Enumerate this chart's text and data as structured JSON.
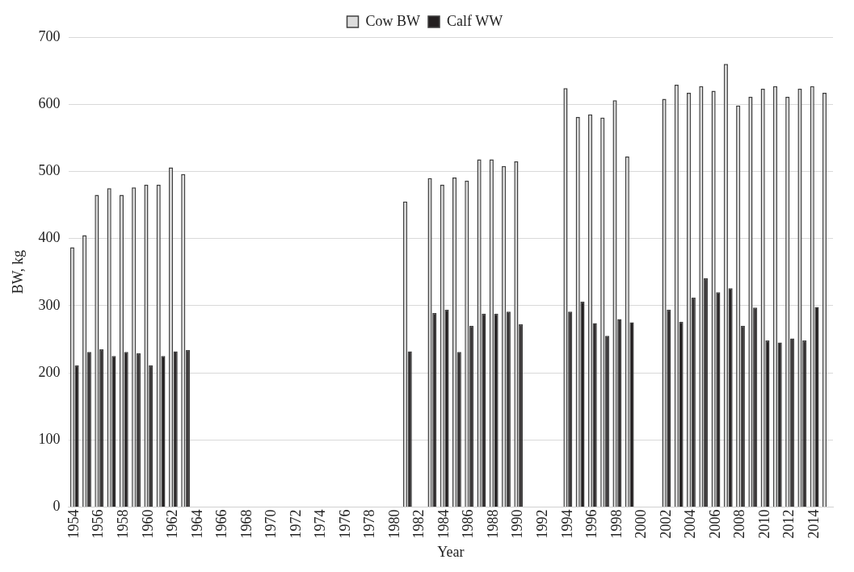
{
  "chart_data": {
    "type": "bar",
    "xlabel": "Year",
    "ylabel": "BW, kg",
    "categories": [
      "1954",
      null,
      "1956",
      null,
      "1958",
      null,
      "1960",
      null,
      "1962",
      null,
      "1964",
      null,
      "1966",
      null,
      "1968",
      null,
      "1970",
      null,
      "1972",
      null,
      "1974",
      null,
      "1976",
      null,
      "1978",
      null,
      "1980",
      null,
      "1982",
      null,
      "1984",
      null,
      "1986",
      null,
      "1988",
      null,
      "1990",
      null,
      "1992",
      null,
      "1994",
      null,
      "1996",
      null,
      "1998",
      null,
      "2000",
      null,
      "2002",
      null,
      "2004",
      null,
      "2006",
      null,
      "2008",
      null,
      "2010",
      null,
      "2012",
      null,
      "2014",
      null
    ],
    "series": [
      {
        "name": "Cow BW",
        "color": "#dcdcdc",
        "values": [
          387,
          405,
          465,
          475,
          465,
          476,
          480,
          480,
          506,
          496,
          null,
          null,
          null,
          null,
          null,
          null,
          null,
          null,
          null,
          null,
          null,
          null,
          null,
          null,
          null,
          null,
          null,
          455,
          null,
          490,
          480,
          491,
          486,
          518,
          518,
          508,
          515,
          null,
          null,
          null,
          624,
          581,
          585,
          580,
          606,
          522,
          null,
          null,
          608,
          629,
          617,
          627,
          620,
          660,
          598,
          611,
          623,
          627,
          611,
          623,
          627,
          617
        ]
      },
      {
        "name": "Calf WW",
        "color": "#231f20",
        "values": [
          211,
          231,
          235,
          225,
          231,
          229,
          211,
          225,
          232,
          234,
          null,
          null,
          null,
          null,
          null,
          null,
          null,
          null,
          null,
          null,
          null,
          null,
          null,
          null,
          null,
          null,
          null,
          232,
          null,
          289,
          294,
          231,
          270,
          288,
          288,
          291,
          272,
          null,
          null,
          null,
          291,
          306,
          274,
          255,
          280,
          275,
          null,
          null,
          294,
          276,
          312,
          341,
          320,
          326,
          270,
          297,
          248,
          245,
          251,
          248,
          298,
          null
        ]
      }
    ],
    "ylim": [
      0,
      700
    ],
    "yticks": [
      0,
      100,
      200,
      300,
      400,
      500,
      600,
      700
    ],
    "grid": "y",
    "legend": "top"
  }
}
